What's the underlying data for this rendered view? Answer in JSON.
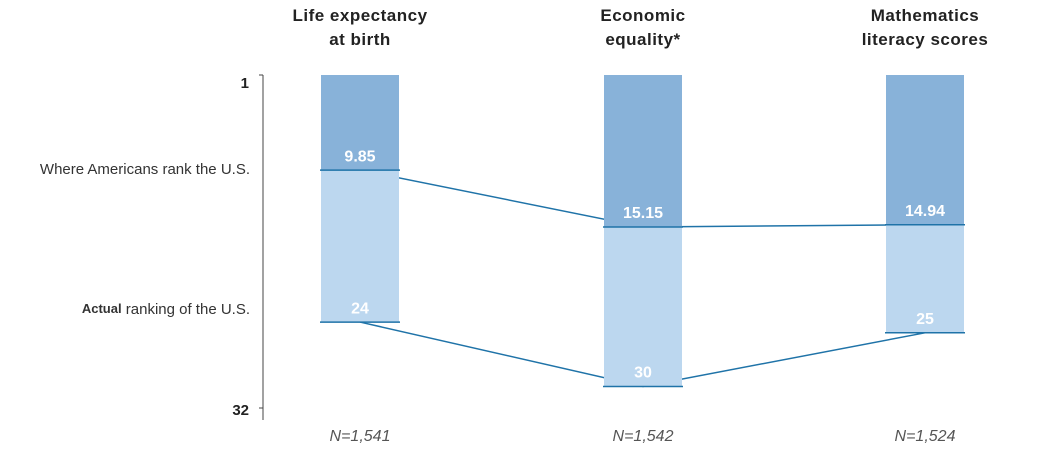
{
  "chart_data": {
    "type": "rank-bar",
    "categories": [
      "Life expectancy at birth",
      "Economic equality*",
      "Mathematics literacy scores"
    ],
    "n_labels": [
      "N=1,541",
      "N=1,542",
      "N=1,524"
    ],
    "series": [
      {
        "name": "Where Americans rank the U.S.",
        "color": "#88b2d9",
        "values": [
          9.85,
          15.15,
          14.94
        ]
      },
      {
        "name": "Actual ranking of the U.S.",
        "color": "#bcd7ef",
        "values": [
          24,
          30,
          25
        ]
      }
    ],
    "line_color": "#1f73a8",
    "ylim": [
      1,
      32
    ],
    "yticks": [
      1,
      32
    ],
    "y_inverted": true
  }
}
